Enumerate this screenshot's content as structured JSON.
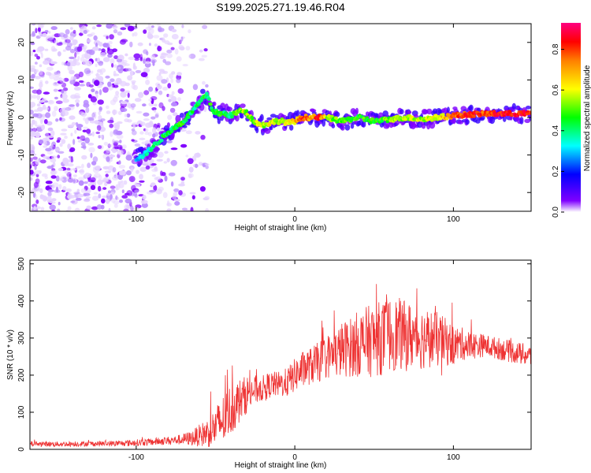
{
  "title": "S199.2025.271.19.46.R04",
  "chart_data": [
    {
      "type": "heatmap",
      "title": "",
      "xlabel": "Height of straight line (km)",
      "ylabel": "Frequency (Hz)",
      "xlim": [
        -167,
        149
      ],
      "ylim": [
        -25,
        25
      ],
      "x_ticks": [
        -100,
        0,
        100
      ],
      "x_tick_labels": [
        "-100",
        "0",
        "100"
      ],
      "y_ticks": [
        -20,
        -10,
        0,
        10,
        20
      ],
      "y_tick_labels": [
        "-20",
        "-10",
        "0",
        "10",
        "20"
      ],
      "colorbar": {
        "label": "Normalized spectral amplitude",
        "range": [
          0,
          0.93
        ],
        "ticks": [
          0.0,
          0.2,
          0.4,
          0.6,
          0.8
        ],
        "tick_labels": [
          "0.0",
          "0.2",
          "0.4",
          "0.6",
          "0.8"
        ],
        "colormap": [
          "#ffffff",
          "#7f00ff",
          "#0000ff",
          "#00ffff",
          "#00ff00",
          "#ffff00",
          "#ff8000",
          "#ff0000",
          "#ff0080"
        ]
      },
      "ridge": {
        "name": "dominant frequency track",
        "x": [
          -100,
          -95,
          -90,
          -85,
          -80,
          -75,
          -70,
          -66,
          -62,
          -58,
          -55,
          -52,
          -48,
          -44,
          -40,
          -36,
          -32,
          -28,
          -24,
          -20,
          -16,
          -12,
          -8,
          -4,
          0,
          5,
          10,
          15,
          20,
          30,
          40,
          50,
          60,
          70,
          80,
          90,
          100,
          110,
          120,
          130,
          140,
          149
        ],
        "y": [
          -11,
          -10,
          -8,
          -6,
          -4,
          -2.5,
          -1,
          1,
          3,
          5,
          6,
          2,
          1,
          1,
          0.5,
          1.5,
          2,
          0,
          -1.5,
          -2,
          -1.5,
          -1,
          -1,
          -1.5,
          -1,
          0,
          0,
          0,
          0,
          -1,
          0,
          -1,
          -0.5,
          0,
          -0.5,
          0,
          0.5,
          0.8,
          1,
          1,
          1,
          1
        ],
        "amplitude": [
          0.3,
          0.35,
          0.4,
          0.45,
          0.45,
          0.5,
          0.5,
          0.45,
          0.45,
          0.5,
          0.45,
          0.5,
          0.5,
          0.45,
          0.45,
          0.55,
          0.6,
          0.55,
          0.6,
          0.6,
          0.65,
          0.55,
          0.6,
          0.65,
          0.7,
          0.85,
          0.75,
          0.9,
          0.6,
          0.55,
          0.5,
          0.5,
          0.55,
          0.6,
          0.6,
          0.65,
          0.8,
          0.9,
          0.85,
          0.9,
          0.9,
          0.9
        ]
      }
    },
    {
      "type": "line",
      "title": "",
      "xlabel": "Height of straight line (km)",
      "ylabel": "SNR (10 * v/v)",
      "xlim": [
        -167,
        149
      ],
      "ylim": [
        0,
        510
      ],
      "x_ticks": [
        -100,
        0,
        100
      ],
      "x_tick_labels": [
        "-100",
        "0",
        "100"
      ],
      "y_ticks": [
        0,
        100,
        200,
        300,
        400,
        500
      ],
      "y_tick_labels": [
        "0",
        "100",
        "200",
        "300",
        "400",
        "500"
      ],
      "series": [
        {
          "name": "SNR",
          "color": "#ee3333",
          "x": [
            -167,
            -150,
            -130,
            -110,
            -90,
            -75,
            -65,
            -55,
            -50,
            -45,
            -40,
            -35,
            -30,
            -25,
            -20,
            -15,
            -10,
            -5,
            0,
            5,
            10,
            15,
            20,
            25,
            30,
            35,
            40,
            45,
            50,
            55,
            60,
            65,
            70,
            75,
            80,
            85,
            90,
            95,
            100,
            105,
            110,
            115,
            120,
            125,
            130,
            135,
            140,
            145,
            149
          ],
          "y": [
            15,
            14,
            15,
            16,
            20,
            25,
            30,
            45,
            60,
            80,
            110,
            130,
            150,
            160,
            165,
            175,
            175,
            180,
            200,
            215,
            225,
            235,
            250,
            255,
            270,
            275,
            285,
            290,
            295,
            300,
            310,
            310,
            305,
            305,
            300,
            300,
            295,
            290,
            280,
            285,
            280,
            280,
            280,
            275,
            270,
            265,
            260,
            255,
            250
          ],
          "noise": [
            7,
            7,
            7,
            8,
            10,
            12,
            20,
            40,
            55,
            70,
            70,
            60,
            50,
            40,
            35,
            35,
            35,
            40,
            45,
            50,
            50,
            55,
            60,
            65,
            75,
            80,
            90,
            95,
            100,
            100,
            100,
            100,
            95,
            90,
            85,
            80,
            75,
            65,
            55,
            45,
            40,
            35,
            30,
            30,
            30,
            30,
            30,
            30,
            30
          ]
        }
      ]
    }
  ]
}
